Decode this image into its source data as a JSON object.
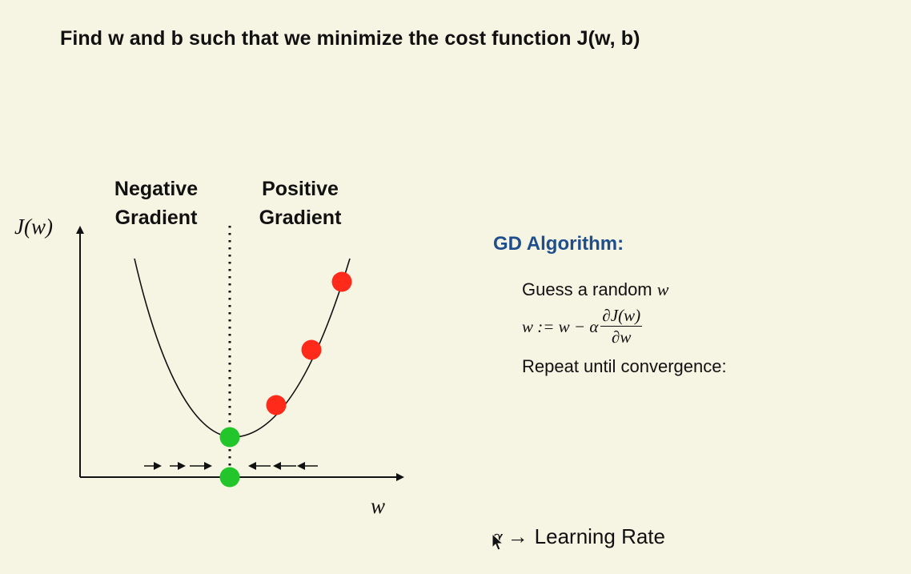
{
  "title": "Find w and b such that we minimize the cost function J(w, b)",
  "diagram": {
    "negative_label": "Negative\nGradient",
    "positive_label": "Positive\nGradient",
    "y_axis_label": "J(w)",
    "x_axis_label": "w",
    "colors": {
      "curve": "#111111",
      "red_points": "#ff2a1a",
      "green_points": "#22c62a",
      "background": "#f6f4e2"
    }
  },
  "gd": {
    "heading": "GD Algorithm:",
    "step1_text": "Guess a random ",
    "step1_var": "w",
    "formula_lhs": "w := w − α",
    "formula_num": "∂J(w)",
    "formula_den": "∂w",
    "step3": "Repeat until convergence:"
  },
  "learning_rate": {
    "symbol": "α",
    "arrow": "→",
    "label": "Learning Rate"
  }
}
